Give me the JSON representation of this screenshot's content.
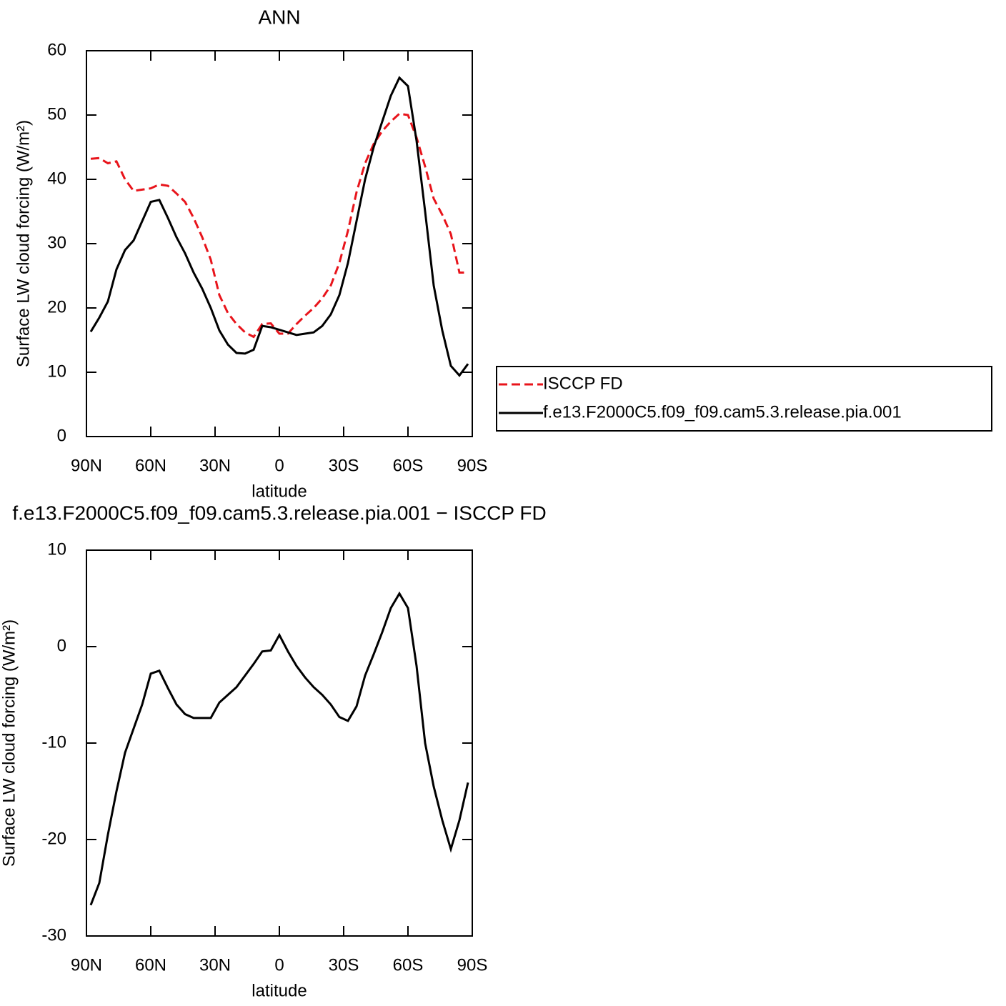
{
  "chart_data": [
    {
      "type": "line",
      "title": "ANN",
      "xlabel": "latitude",
      "ylabel": "Surface LW cloud forcing (W/m²)",
      "x": [
        88,
        84,
        80,
        76,
        72,
        68,
        64,
        60,
        56,
        52,
        48,
        44,
        40,
        36,
        32,
        28,
        24,
        20,
        16,
        12,
        8,
        4,
        0,
        -4,
        -8,
        -12,
        -16,
        -20,
        -24,
        -28,
        -32,
        -36,
        -40,
        -44,
        -48,
        -52,
        -56,
        -60,
        -64,
        -68,
        -72,
        -76,
        -80,
        -84,
        -88
      ],
      "xlim": [
        90,
        -90
      ],
      "xticks": [
        {
          "value": 90,
          "label": "90N"
        },
        {
          "value": 60,
          "label": "60N"
        },
        {
          "value": 30,
          "label": "30N"
        },
        0,
        {
          "value": -30,
          "label": "30S"
        },
        {
          "value": -60,
          "label": "60S"
        },
        {
          "value": -90,
          "label": "90S"
        }
      ],
      "ylim": [
        0,
        60
      ],
      "yticks": [
        0,
        10,
        20,
        30,
        40,
        50,
        60
      ],
      "legend": "right",
      "series": [
        {
          "name": "ISCCP FD",
          "color": "#e8141b",
          "dashed": true,
          "values": [
            43.2,
            43.3,
            42.5,
            42.8,
            40,
            38.2,
            38.4,
            38.6,
            39.2,
            39,
            37.8,
            36.5,
            34,
            31,
            27.5,
            22,
            19.2,
            17.5,
            16.2,
            15.5,
            17.5,
            17.6,
            16,
            16,
            17.5,
            18.8,
            20,
            21.5,
            23.5,
            27,
            32,
            38,
            42.5,
            45.5,
            47.5,
            49,
            50.2,
            50,
            46.5,
            42,
            37,
            34.5,
            31.5,
            25.5,
            25.5
          ]
        },
        {
          "name": "f.e13.F2000C5.f09_f09.cam5.3.release.pia.001",
          "color": "#000000",
          "dashed": false,
          "values": [
            16.3,
            18.5,
            21,
            26,
            29,
            30.5,
            33.5,
            36.5,
            36.8,
            34,
            31,
            28.5,
            25.5,
            23,
            20,
            16.5,
            14.3,
            13,
            12.9,
            13.5,
            17.2,
            17,
            16.6,
            16.2,
            15.8,
            16,
            16.2,
            17.2,
            19,
            22,
            27,
            33.5,
            40,
            45,
            49,
            53,
            55.8,
            54.5,
            46,
            35,
            23.5,
            16.5,
            11,
            9.5,
            11.3
          ]
        }
      ]
    },
    {
      "type": "line",
      "title": "f.e13.F2000C5.f09_f09.cam5.3.release.pia.001 − ISCCP FD",
      "xlabel": "latitude",
      "ylabel": "Surface LW cloud forcing (W/m²)",
      "x": [
        88,
        84,
        80,
        76,
        72,
        68,
        64,
        60,
        56,
        52,
        48,
        44,
        40,
        36,
        32,
        28,
        24,
        20,
        16,
        12,
        8,
        4,
        0,
        -4,
        -8,
        -12,
        -16,
        -20,
        -24,
        -28,
        -32,
        -36,
        -40,
        -44,
        -48,
        -52,
        -56,
        -60,
        -64,
        -68,
        -72,
        -76,
        -80,
        -84,
        -88
      ],
      "xlim": [
        90,
        -90
      ],
      "xticks": [
        {
          "value": 90,
          "label": "90N"
        },
        {
          "value": 60,
          "label": "60N"
        },
        {
          "value": 30,
          "label": "30N"
        },
        0,
        {
          "value": -30,
          "label": "30S"
        },
        {
          "value": -60,
          "label": "60S"
        },
        {
          "value": -90,
          "label": "90S"
        }
      ],
      "ylim": [
        -30,
        10
      ],
      "yticks": [
        -30,
        -20,
        -10,
        0,
        10
      ],
      "series": [
        {
          "color": "#000000",
          "dashed": false,
          "values": [
            -26.8,
            -24.5,
            -19.5,
            -15,
            -11,
            -8.5,
            -6,
            -2.8,
            -2.5,
            -4.3,
            -6,
            -7,
            -7.4,
            -7.4,
            -7.4,
            -5.8,
            -5,
            -4.2,
            -3,
            -1.8,
            -0.5,
            -0.4,
            1.2,
            -0.5,
            -2,
            -3.2,
            -4.2,
            -5,
            -6,
            -7.3,
            -7.7,
            -6.2,
            -3,
            -0.8,
            1.5,
            4,
            5.5,
            4,
            -2,
            -10,
            -14.5,
            -18,
            -21,
            -18,
            -14.1
          ]
        }
      ]
    }
  ]
}
